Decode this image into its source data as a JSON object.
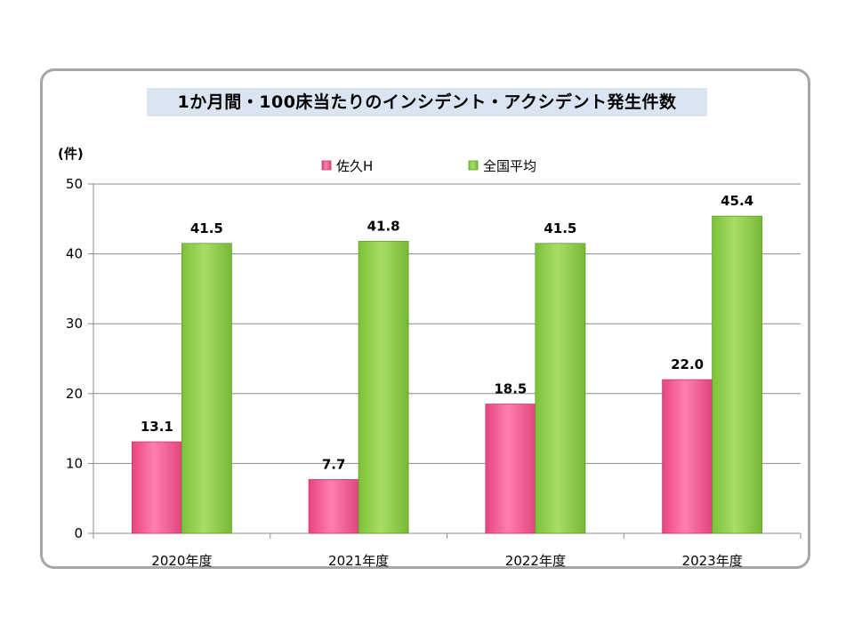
{
  "chart_data": {
    "type": "bar",
    "title": "1か月間・100床当たりのインシデント・アクシデント発生件数",
    "ylabel": "(件)",
    "xlabel": "",
    "categories": [
      "2020年度",
      "2021年度",
      "2022年度",
      "2023年度"
    ],
    "series": [
      {
        "name": "佐久H",
        "values": [
          13.1,
          7.7,
          18.5,
          22.0
        ],
        "labels": [
          "13.1",
          "7.7",
          "18.5",
          "22.0"
        ],
        "color": "#ff6fa5"
      },
      {
        "name": "全国平均",
        "values": [
          41.5,
          41.8,
          41.5,
          45.4
        ],
        "labels": [
          "41.5",
          "41.8",
          "41.5",
          "45.4"
        ],
        "color": "#92d050"
      }
    ],
    "ylim": [
      0,
      50
    ],
    "yticks": [
      "0",
      "10",
      "20",
      "30",
      "40",
      "50"
    ],
    "grid": true,
    "legend_position": "top"
  }
}
